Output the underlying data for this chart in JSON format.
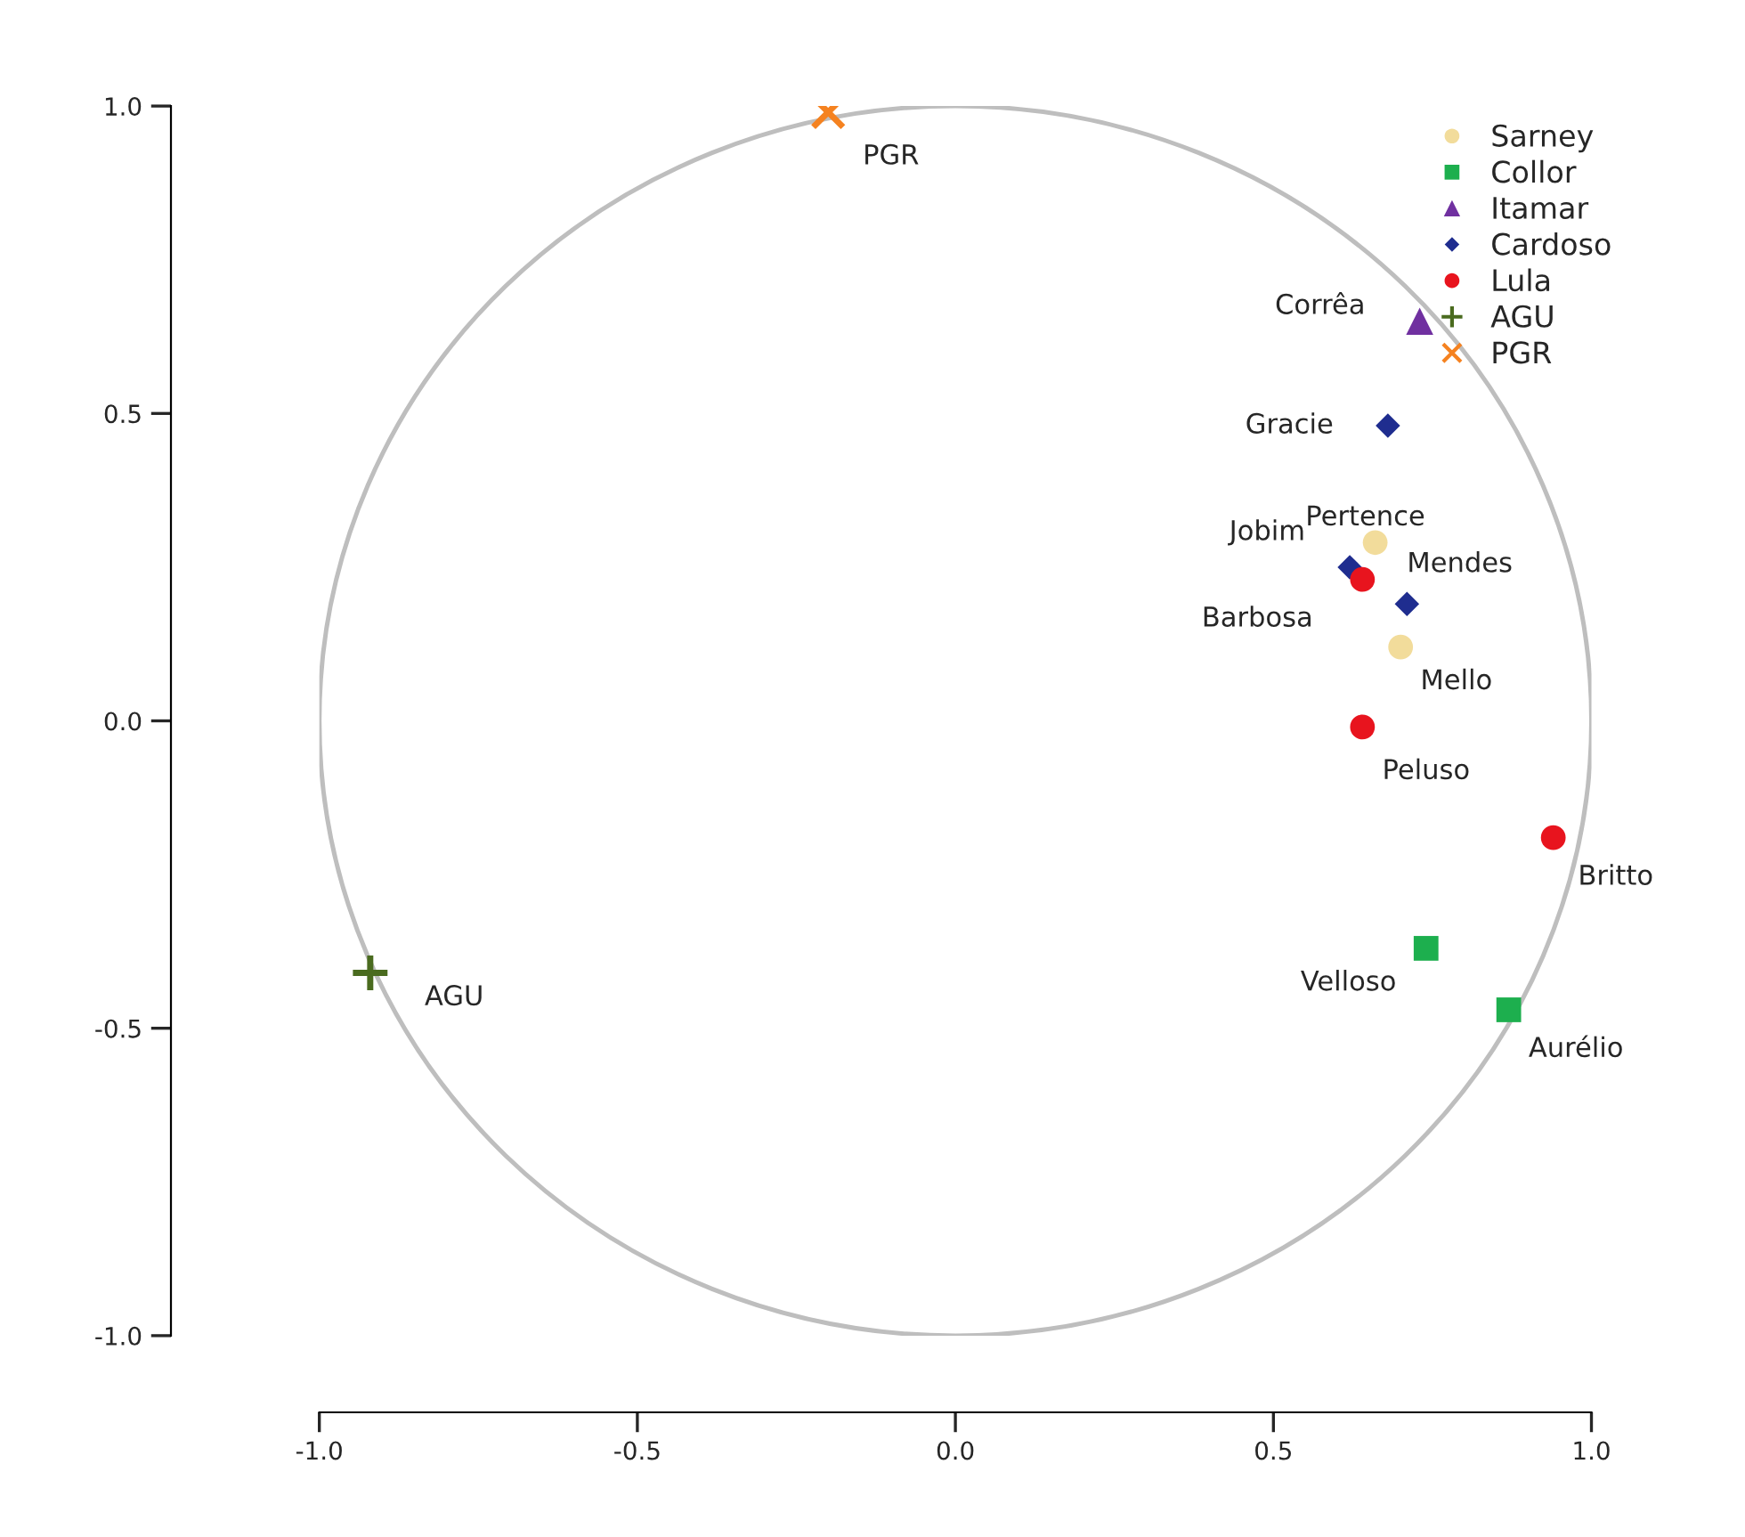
{
  "chart_data": {
    "type": "scatter",
    "xlim": [
      -1.0,
      1.0
    ],
    "xticks": [
      {
        "value": -1.0,
        "label": "-1.0"
      },
      {
        "value": -0.5,
        "label": "-0.5"
      },
      {
        "value": 0.0,
        "label": "0.0"
      },
      {
        "value": 0.5,
        "label": "0.5"
      },
      {
        "value": 1.0,
        "label": "1.0"
      }
    ],
    "ylim": [
      -1.0,
      1.0
    ],
    "yticks": [
      {
        "value": -1.0,
        "label": "-1.0"
      },
      {
        "value": -0.5,
        "label": "-0.5"
      },
      {
        "value": 0.0,
        "label": "0.0"
      },
      {
        "value": 0.5,
        "label": "0.5"
      },
      {
        "value": 1.0,
        "label": "1.0"
      }
    ],
    "grid": false,
    "legend": "top right",
    "series": [
      {
        "name": "Sarney",
        "color": "#f2dc9b",
        "marker": "circle",
        "x": [
          0.66,
          0.7
        ],
        "values": [
          0.29,
          0.12
        ]
      },
      {
        "name": "Collor",
        "color": "#1daf4e",
        "marker": "square",
        "x": [
          0.74,
          0.87
        ],
        "values": [
          -0.37,
          -0.47
        ]
      },
      {
        "name": "Itamar",
        "color": "#7030a0",
        "marker": "triangle",
        "x": [
          0.73
        ],
        "values": [
          0.65
        ]
      },
      {
        "name": "Cardoso",
        "color": "#1f2d8f",
        "marker": "diamond",
        "x": [
          0.68,
          0.62,
          0.71
        ],
        "values": [
          0.48,
          0.25,
          0.19
        ]
      },
      {
        "name": "Lula",
        "color": "#e8141e",
        "marker": "circle",
        "x": [
          0.64,
          0.64,
          0.94
        ],
        "values": [
          0.23,
          -0.01,
          -0.19
        ]
      },
      {
        "name": "AGU",
        "color": "#4a6b1f",
        "marker": "plus",
        "x": [
          -0.92
        ],
        "values": [
          -0.41
        ]
      },
      {
        "name": "PGR",
        "color": "#f58220",
        "marker": "cross",
        "x": [
          -0.2
        ],
        "values": [
          0.99
        ]
      }
    ],
    "annotations": [
      {
        "text": "Pertence",
        "x": 0.66,
        "y": 0.29
      },
      {
        "text": "Mello",
        "x": 0.7,
        "y": 0.12
      },
      {
        "text": "Velloso",
        "x": 0.74,
        "y": -0.37
      },
      {
        "text": "Aurélio",
        "x": 0.87,
        "y": -0.47
      },
      {
        "text": "Corrêa",
        "x": 0.73,
        "y": 0.65
      },
      {
        "text": "Gracie",
        "x": 0.68,
        "y": 0.48
      },
      {
        "text": "Jobim",
        "x": 0.62,
        "y": 0.25
      },
      {
        "text": "Mendes",
        "x": 0.71,
        "y": 0.19
      },
      {
        "text": "Barbosa",
        "x": 0.64,
        "y": 0.23
      },
      {
        "text": "Peluso",
        "x": 0.64,
        "y": -0.01
      },
      {
        "text": "Britto",
        "x": 0.94,
        "y": -0.19
      },
      {
        "text": "AGU",
        "x": -0.92,
        "y": -0.41
      },
      {
        "text": "PGR",
        "x": -0.2,
        "y": 0.99
      }
    ]
  }
}
